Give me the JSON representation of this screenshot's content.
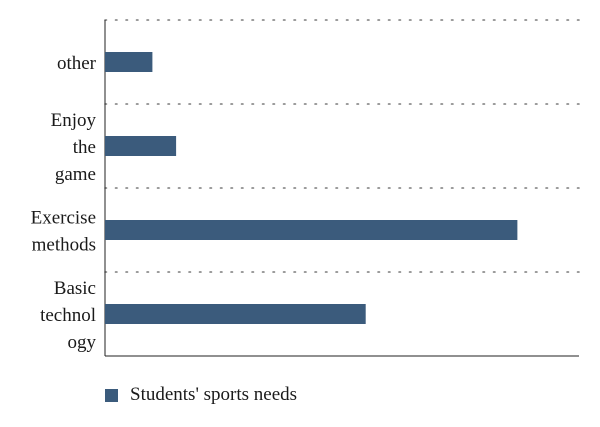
{
  "chart_data": {
    "type": "bar",
    "orientation": "horizontal",
    "categories": [
      "other",
      "Enjoy the game",
      "Exercise methods",
      "Basic technology"
    ],
    "category_label_lines": [
      [
        "other"
      ],
      [
        "Enjoy",
        "the",
        "game"
      ],
      [
        "Exercise",
        "methods"
      ],
      [
        "Basic",
        "technol",
        "ogy"
      ]
    ],
    "series": [
      {
        "name": "Students' sports needs",
        "values": [
          10,
          15,
          87,
          55
        ],
        "color": "#3b5b7c"
      }
    ],
    "xlim": [
      0,
      100
    ],
    "grid": "dotted-horizontal",
    "legend_position": "bottom-left"
  }
}
